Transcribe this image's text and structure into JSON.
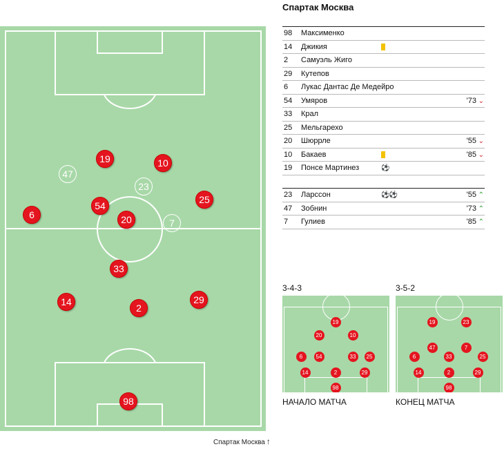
{
  "team_name": "Спартак Москва",
  "pitch_caption": "Спартак Москва",
  "pitch_players": [
    {
      "num": "19",
      "sub": false
    },
    {
      "num": "10",
      "sub": false
    },
    {
      "num": "47",
      "sub": true
    },
    {
      "num": "23",
      "sub": true
    },
    {
      "num": "6",
      "sub": false
    },
    {
      "num": "54",
      "sub": false
    },
    {
      "num": "25",
      "sub": false
    },
    {
      "num": "20",
      "sub": false
    },
    {
      "num": "7",
      "sub": true
    },
    {
      "num": "33",
      "sub": false
    },
    {
      "num": "14",
      "sub": false
    },
    {
      "num": "2",
      "sub": false
    },
    {
      "num": "29",
      "sub": false
    },
    {
      "num": "98",
      "sub": false
    }
  ],
  "starters": [
    {
      "num": "98",
      "name": "Максименко",
      "yellow": false,
      "goals": 0,
      "minute": "",
      "event": ""
    },
    {
      "num": "14",
      "name": "Джикия",
      "yellow": true,
      "goals": 0,
      "minute": "",
      "event": ""
    },
    {
      "num": "2",
      "name": "Самуэль Жиго",
      "yellow": false,
      "goals": 0,
      "minute": "",
      "event": ""
    },
    {
      "num": "29",
      "name": "Кутепов",
      "yellow": false,
      "goals": 0,
      "minute": "",
      "event": ""
    },
    {
      "num": "6",
      "name": "Лукас Дантас Де Медейро",
      "yellow": false,
      "goals": 0,
      "minute": "",
      "event": ""
    },
    {
      "num": "54",
      "name": "Умяров",
      "yellow": false,
      "goals": 0,
      "minute": "'73",
      "event": "out"
    },
    {
      "num": "33",
      "name": "Крал",
      "yellow": false,
      "goals": 0,
      "minute": "",
      "event": ""
    },
    {
      "num": "25",
      "name": "Мельгарехо",
      "yellow": false,
      "goals": 0,
      "minute": "",
      "event": ""
    },
    {
      "num": "20",
      "name": "Шюррле",
      "yellow": false,
      "goals": 0,
      "minute": "'55",
      "event": "out"
    },
    {
      "num": "10",
      "name": "Бакаев",
      "yellow": true,
      "goals": 0,
      "minute": "'85",
      "event": "out"
    },
    {
      "num": "19",
      "name": "Понсе Мартинез",
      "yellow": false,
      "goals": 1,
      "minute": "",
      "event": ""
    }
  ],
  "substitutes": [
    {
      "num": "23",
      "name": "Ларссон",
      "yellow": false,
      "goals": 2,
      "minute": "'55",
      "event": "in"
    },
    {
      "num": "47",
      "name": "Зобнин",
      "yellow": false,
      "goals": 0,
      "minute": "'73",
      "event": "in"
    },
    {
      "num": "7",
      "name": "Гулиев",
      "yellow": false,
      "goals": 0,
      "minute": "'85",
      "event": "in"
    }
  ],
  "formations": [
    {
      "scheme": "3-4-3",
      "caption": "НАЧАЛО МАТЧА",
      "players": [
        "19",
        "20",
        "10",
        "6",
        "54",
        "33",
        "25",
        "14",
        "2",
        "29",
        "98"
      ]
    },
    {
      "scheme": "3-5-2",
      "caption": "КОНЕЦ МАТЧА",
      "players": [
        "19",
        "23",
        "47",
        "7",
        "6",
        "33",
        "25",
        "14",
        "2",
        "29",
        "98"
      ]
    }
  ],
  "icons": {
    "yellow_card": "yellow-card-icon",
    "goal": "ball-icon",
    "sub_out": "red-down-chevron-icon",
    "sub_in": "green-up-chevron-icon",
    "caption_arrow": "up-arrow-icon"
  },
  "colors": {
    "pitch": "#a8d8a8",
    "player": "#e4151f",
    "yellow_card": "#f3c200",
    "sub_out": "#d41b24",
    "sub_in": "#2a9a2a"
  }
}
